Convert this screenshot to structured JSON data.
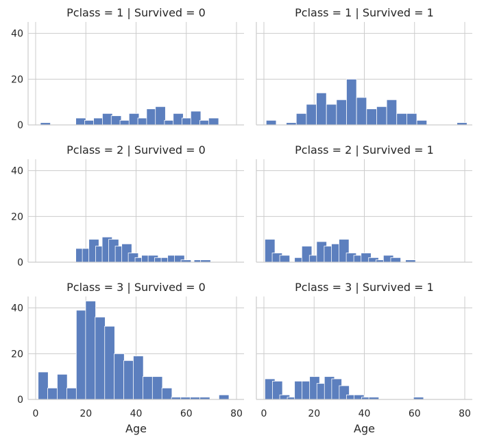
{
  "chart_data": {
    "type": "bar",
    "layout": "facet-grid",
    "rows": 3,
    "cols": 2,
    "xlabel": "Age",
    "xlim": [
      -3,
      83
    ],
    "ylim": [
      0,
      45
    ],
    "xticks": [
      0,
      20,
      40,
      60,
      80
    ],
    "yticks": [
      0,
      20,
      40
    ],
    "bin_width": 4,
    "bar_color": "#5c7fbe",
    "grid": true,
    "panels": [
      {
        "title": "Pclass = 1 | Survived = 0",
        "bars": [
          {
            "x0": 1.9,
            "count": 1
          },
          {
            "x0": 16.0,
            "count": 3
          },
          {
            "x0": 19.5,
            "count": 2
          },
          {
            "x0": 23.1,
            "count": 3
          },
          {
            "x0": 26.6,
            "count": 5
          },
          {
            "x0": 30.1,
            "count": 4
          },
          {
            "x0": 33.6,
            "count": 2
          },
          {
            "x0": 37.2,
            "count": 5
          },
          {
            "x0": 40.7,
            "count": 3
          },
          {
            "x0": 44.2,
            "count": 7
          },
          {
            "x0": 47.7,
            "count": 8
          },
          {
            "x0": 51.3,
            "count": 2
          },
          {
            "x0": 54.8,
            "count": 5
          },
          {
            "x0": 58.3,
            "count": 3
          },
          {
            "x0": 61.8,
            "count": 6
          },
          {
            "x0": 65.4,
            "count": 2
          },
          {
            "x0": 68.9,
            "count": 3
          }
        ]
      },
      {
        "title": "Pclass = 1 | Survived = 1",
        "bars": [
          {
            "x0": 0.9,
            "count": 2
          },
          {
            "x0": 8.9,
            "count": 1
          },
          {
            "x0": 12.9,
            "count": 5
          },
          {
            "x0": 16.9,
            "count": 9
          },
          {
            "x0": 20.9,
            "count": 14
          },
          {
            "x0": 24.9,
            "count": 9
          },
          {
            "x0": 28.9,
            "count": 11
          },
          {
            "x0": 32.9,
            "count": 20
          },
          {
            "x0": 36.9,
            "count": 12
          },
          {
            "x0": 40.9,
            "count": 7
          },
          {
            "x0": 44.9,
            "count": 8
          },
          {
            "x0": 48.9,
            "count": 11
          },
          {
            "x0": 52.9,
            "count": 5
          },
          {
            "x0": 56.9,
            "count": 5
          },
          {
            "x0": 60.9,
            "count": 2
          },
          {
            "x0": 76.9,
            "count": 1
          }
        ]
      },
      {
        "title": "Pclass = 2 | Survived = 0",
        "bars": [
          {
            "x0": 16.0,
            "count": 6
          },
          {
            "x0": 18.6,
            "count": 6
          },
          {
            "x0": 21.2,
            "count": 10
          },
          {
            "x0": 23.9,
            "count": 7
          },
          {
            "x0": 26.5,
            "count": 11
          },
          {
            "x0": 29.1,
            "count": 10
          },
          {
            "x0": 31.7,
            "count": 7
          },
          {
            "x0": 34.3,
            "count": 8
          },
          {
            "x0": 36.9,
            "count": 4
          },
          {
            "x0": 39.6,
            "count": 2
          },
          {
            "x0": 42.2,
            "count": 3
          },
          {
            "x0": 44.8,
            "count": 3
          },
          {
            "x0": 47.4,
            "count": 2
          },
          {
            "x0": 50.0,
            "count": 2
          },
          {
            "x0": 52.6,
            "count": 3
          },
          {
            "x0": 55.3,
            "count": 3
          },
          {
            "x0": 57.9,
            "count": 1
          },
          {
            "x0": 63.1,
            "count": 1
          },
          {
            "x0": 65.7,
            "count": 1
          }
        ]
      },
      {
        "title": "Pclass = 2 | Survived = 1",
        "bars": [
          {
            "x0": 0.4,
            "count": 10
          },
          {
            "x0": 3.3,
            "count": 4
          },
          {
            "x0": 6.3,
            "count": 3
          },
          {
            "x0": 12.2,
            "count": 2
          },
          {
            "x0": 15.1,
            "count": 7
          },
          {
            "x0": 18.1,
            "count": 3
          },
          {
            "x0": 21.0,
            "count": 9
          },
          {
            "x0": 24.0,
            "count": 7
          },
          {
            "x0": 26.9,
            "count": 8
          },
          {
            "x0": 29.9,
            "count": 10
          },
          {
            "x0": 32.8,
            "count": 4
          },
          {
            "x0": 35.8,
            "count": 3
          },
          {
            "x0": 38.7,
            "count": 4
          },
          {
            "x0": 41.7,
            "count": 2
          },
          {
            "x0": 44.6,
            "count": 1
          },
          {
            "x0": 47.6,
            "count": 3
          },
          {
            "x0": 50.5,
            "count": 2
          },
          {
            "x0": 56.4,
            "count": 1
          }
        ]
      },
      {
        "title": "Pclass = 3 | Survived = 0",
        "bars": [
          {
            "x0": 1.0,
            "count": 12
          },
          {
            "x0": 4.8,
            "count": 5
          },
          {
            "x0": 8.6,
            "count": 11
          },
          {
            "x0": 12.4,
            "count": 5
          },
          {
            "x0": 16.2,
            "count": 39
          },
          {
            "x0": 19.9,
            "count": 43
          },
          {
            "x0": 23.7,
            "count": 36
          },
          {
            "x0": 27.5,
            "count": 32
          },
          {
            "x0": 31.3,
            "count": 20
          },
          {
            "x0": 35.1,
            "count": 17
          },
          {
            "x0": 38.9,
            "count": 19
          },
          {
            "x0": 42.7,
            "count": 10
          },
          {
            "x0": 46.5,
            "count": 10
          },
          {
            "x0": 50.3,
            "count": 5
          },
          {
            "x0": 54.1,
            "count": 1
          },
          {
            "x0": 57.8,
            "count": 1
          },
          {
            "x0": 61.6,
            "count": 1
          },
          {
            "x0": 65.4,
            "count": 1
          },
          {
            "x0": 73.0,
            "count": 2
          }
        ]
      },
      {
        "title": "Pclass = 3 | Survived = 1",
        "bars": [
          {
            "x0": 0.4,
            "count": 9
          },
          {
            "x0": 3.4,
            "count": 8
          },
          {
            "x0": 6.3,
            "count": 2
          },
          {
            "x0": 9.3,
            "count": 1
          },
          {
            "x0": 12.2,
            "count": 8
          },
          {
            "x0": 15.2,
            "count": 8
          },
          {
            "x0": 18.2,
            "count": 10
          },
          {
            "x0": 21.1,
            "count": 7
          },
          {
            "x0": 24.1,
            "count": 10
          },
          {
            "x0": 27.0,
            "count": 9
          },
          {
            "x0": 30.0,
            "count": 6
          },
          {
            "x0": 32.9,
            "count": 2
          },
          {
            "x0": 35.9,
            "count": 2
          },
          {
            "x0": 38.9,
            "count": 1
          },
          {
            "x0": 41.8,
            "count": 1
          },
          {
            "x0": 59.6,
            "count": 1
          }
        ]
      }
    ]
  }
}
